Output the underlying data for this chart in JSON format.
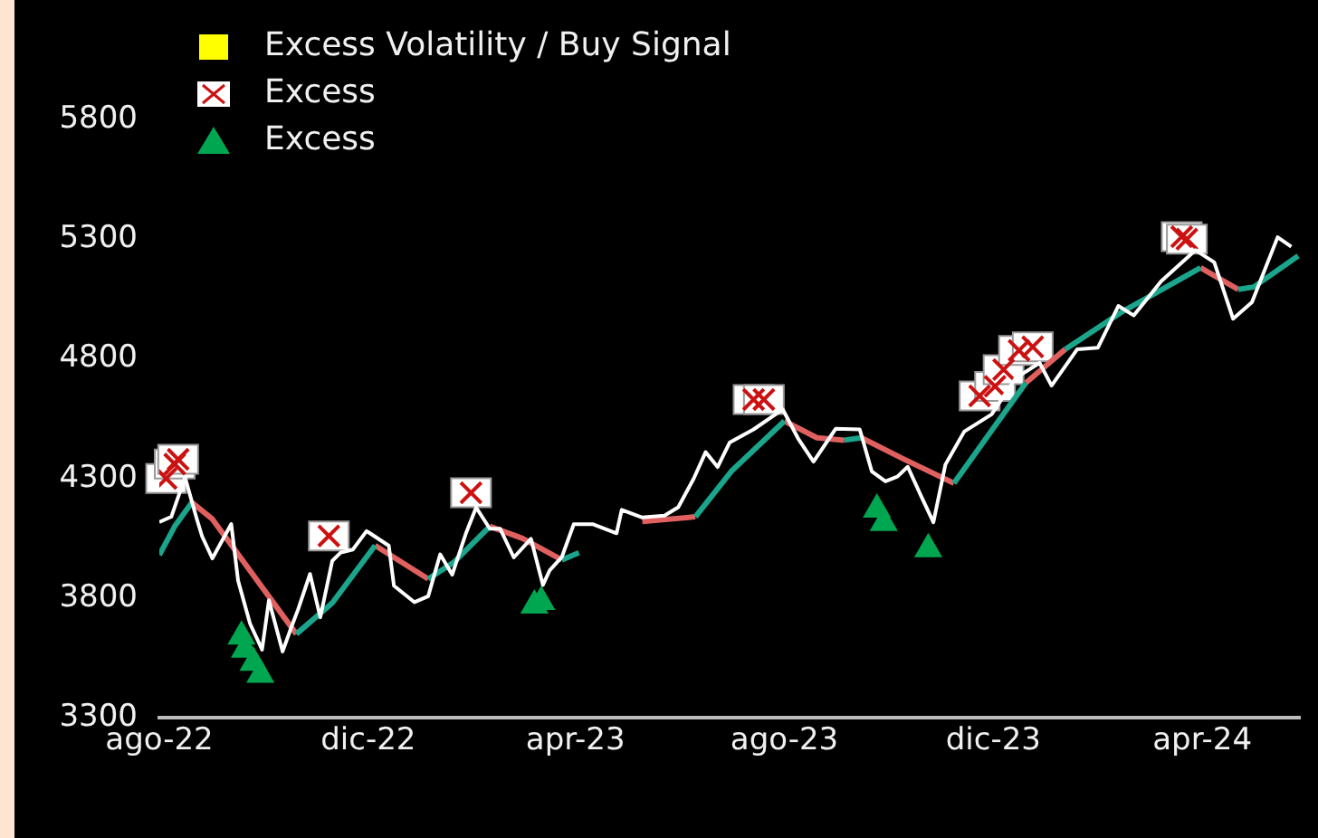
{
  "chart_data": {
    "type": "line",
    "xlim": [
      "2022-08-01",
      "2024-05-28"
    ],
    "ylim": [
      3300,
      5800
    ],
    "xticks": [
      {
        "value": "2022-08-01",
        "label": "ago-22"
      },
      {
        "value": "2022-12-01",
        "label": "dic-22"
      },
      {
        "value": "2023-04-01",
        "label": "apr-23"
      },
      {
        "value": "2023-08-01",
        "label": "ago-23"
      },
      {
        "value": "2023-12-01",
        "label": "dic-23"
      },
      {
        "value": "2024-04-01",
        "label": "apr-24"
      }
    ],
    "yticks": [
      3300,
      3800,
      4300,
      4800,
      5300,
      5800
    ],
    "legend": "top left",
    "series": [
      {
        "marker": "none",
        "color": "#ffffff",
        "x": [
          "2022-08-01",
          "2022-08-08",
          "2022-08-16",
          "2022-08-23",
          "2022-08-26",
          "2022-09-01",
          "2022-09-12",
          "2022-09-16",
          "2022-09-23",
          "2022-09-30",
          "2022-10-04",
          "2022-10-12",
          "2022-10-17",
          "2022-10-21",
          "2022-10-28",
          "2022-11-03",
          "2022-11-10",
          "2022-11-15",
          "2022-11-22",
          "2022-11-30",
          "2022-12-01",
          "2022-12-13",
          "2022-12-16",
          "2022-12-28",
          "2023-01-05",
          "2023-01-12",
          "2023-01-19",
          "2023-01-27",
          "2023-02-02",
          "2023-02-10",
          "2023-02-16",
          "2023-02-24",
          "2023-03-06",
          "2023-03-13",
          "2023-03-17",
          "2023-03-24",
          "2023-03-31",
          "2023-04-11",
          "2023-04-25",
          "2023-04-28",
          "2023-05-10",
          "2023-05-23",
          "2023-05-31",
          "2023-06-09",
          "2023-06-16",
          "2023-06-23",
          "2023-06-30",
          "2023-07-14",
          "2023-07-31",
          "2023-08-09",
          "2023-08-18",
          "2023-08-31",
          "2023-09-14",
          "2023-09-21",
          "2023-09-29",
          "2023-10-06",
          "2023-10-12",
          "2023-10-20",
          "2023-10-27",
          "2023-11-03",
          "2023-11-14",
          "2023-11-30",
          "2023-12-14",
          "2023-12-28",
          "2024-01-04",
          "2024-01-19",
          "2024-01-31",
          "2024-02-12",
          "2024-02-21",
          "2024-03-08",
          "2024-03-28",
          "2024-04-08",
          "2024-04-19",
          "2024-04-30",
          "2024-05-15",
          "2024-05-23"
        ],
        "values": [
          4118,
          4140,
          4305,
          4128,
          4058,
          3966,
          4110,
          3873,
          3693,
          3585,
          3791,
          3577,
          3677,
          3752,
          3901,
          3720,
          3956,
          3991,
          4003,
          4080,
          4076,
          4019,
          3852,
          3783,
          3808,
          3983,
          3898,
          4070,
          4179,
          4090,
          4090,
          3970,
          4048,
          3855,
          3917,
          3971,
          4109,
          4109,
          4071,
          4169,
          4137,
          4145,
          4180,
          4299,
          4410,
          4348,
          4450,
          4505,
          4589,
          4467,
          4370,
          4508,
          4505,
          4330,
          4288,
          4308,
          4349,
          4224,
          4117,
          4358,
          4496,
          4568,
          4719,
          4783,
          4688,
          4840,
          4846,
          5021,
          4981,
          5124,
          5254,
          5203,
          4967,
          5036,
          5308,
          5268
        ]
      },
      {
        "marker": "none",
        "color": "#1aa58c",
        "x": [
          "2022-08-01",
          "2022-08-10",
          "2022-08-20",
          "2022-09-01",
          "2022-10-20",
          "2022-11-10",
          "2022-12-05",
          "2022-12-20",
          "2023-01-05",
          "2023-01-20",
          "2023-02-10",
          "2023-03-01",
          "2023-03-24",
          "2023-04-03",
          "2023-05-01",
          "2023-06-10",
          "2023-07-01",
          "2023-08-01",
          "2023-08-20",
          "2023-09-05",
          "2023-09-15",
          "2023-10-01",
          "2023-11-08",
          "2023-11-30",
          "2023-12-20",
          "2024-01-01",
          "2024-01-12",
          "2024-02-15",
          "2024-03-31",
          "2024-04-10",
          "2024-04-22",
          "2024-05-01",
          "2024-05-27"
        ],
        "values": [
          3980,
          4100,
          4200,
          null,
          3650,
          3780,
          4020,
          null,
          3880,
          3950,
          4100,
          null,
          3960,
          3990,
          null,
          4140,
          4330,
          4540,
          null,
          4460,
          4470,
          null,
          4280,
          4500,
          4700,
          null,
          4840,
          5000,
          5180,
          null,
          5090,
          5100,
          5230
        ]
      },
      {
        "marker": "none",
        "color": "#e06060",
        "x": [
          "2022-08-20",
          "2022-09-01",
          "2022-10-20",
          "2022-11-10",
          "2022-12-05",
          "2023-01-05",
          "2023-01-20",
          "2023-02-10",
          "2023-03-01",
          "2023-03-24",
          "2023-04-03",
          "2023-05-10",
          "2023-06-10",
          "2023-07-01",
          "2023-08-01",
          "2023-08-20",
          "2023-09-05",
          "2023-09-10",
          "2023-09-15",
          "2023-10-10",
          "2023-11-08",
          "2023-11-30",
          "2023-12-20",
          "2024-01-12",
          "2024-02-15",
          "2024-03-31",
          "2024-04-22"
        ],
        "values": [
          4200,
          4130,
          3650,
          null,
          4020,
          3880,
          null,
          4100,
          4050,
          3960,
          null,
          4120,
          4140,
          null,
          4540,
          4470,
          4460,
          null,
          4470,
          4380,
          4280,
          null,
          4700,
          4840,
          null,
          5180,
          5090
        ]
      },
      {
        "type": "scatter",
        "marker": "square",
        "color": "#ffff00",
        "name": "Excess Volatility / Buy Signal"
      },
      {
        "type": "scatter",
        "marker": "cross",
        "color": "#cc1111",
        "name": "Excess",
        "x": [
          "2022-08-05",
          "2022-08-10",
          "2022-08-12",
          "2022-11-08",
          "2023-01-30",
          "2023-07-14",
          "2023-07-20",
          "2023-11-23",
          "2023-12-02",
          "2023-12-07",
          "2023-12-16",
          "2023-12-24",
          "2024-03-20",
          "2024-03-23"
        ],
        "values": [
          4300,
          4360,
          4380,
          4060,
          4240,
          4630,
          4630,
          4645,
          4685,
          4755,
          4835,
          4850,
          5310,
          5300
        ]
      },
      {
        "type": "scatter",
        "marker": "triangle",
        "color": "#00a650",
        "name": "Excess",
        "x": [
          "2022-09-18",
          "2022-09-20",
          "2022-09-25",
          "2022-09-29",
          "2023-03-08",
          "2023-03-12",
          "2023-09-24",
          "2023-09-28",
          "2023-10-24"
        ],
        "values": [
          3640,
          3585,
          3530,
          3480,
          3770,
          3785,
          4170,
          4115,
          4005
        ]
      }
    ]
  }
}
